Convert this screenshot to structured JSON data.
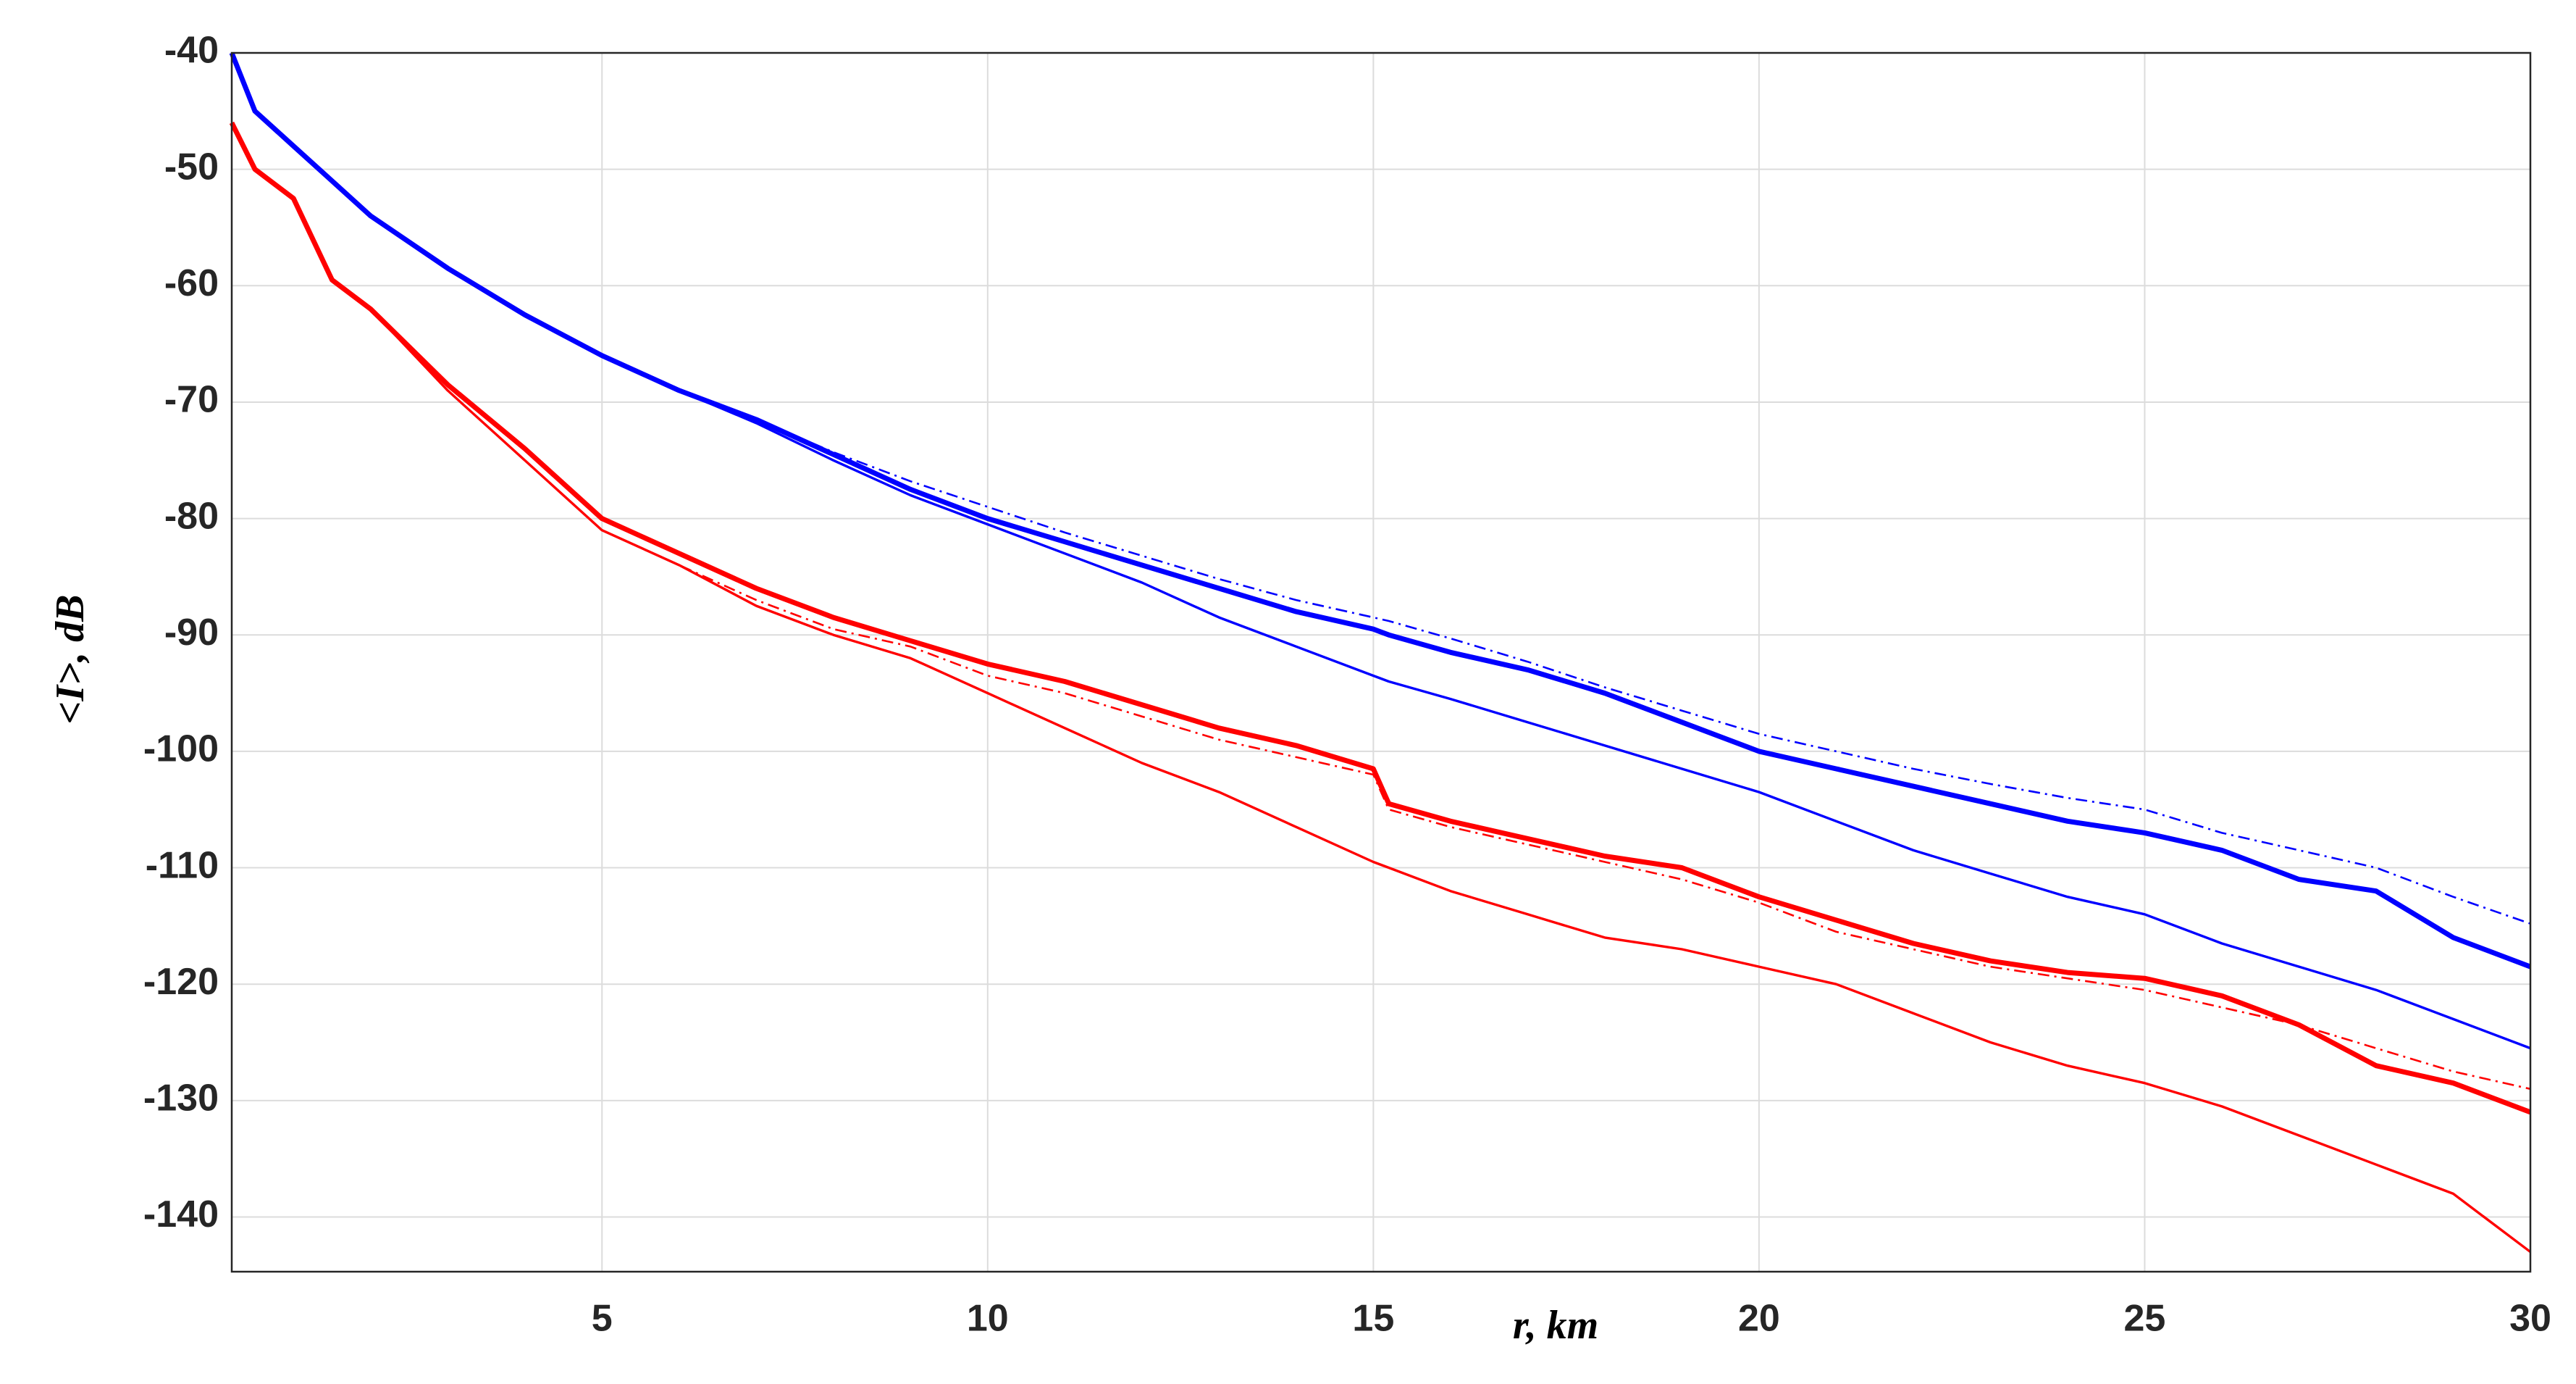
{
  "chart_data": {
    "type": "line",
    "xlabel": "r, km",
    "ylabel": "<I>, dB",
    "x": [
      0.2,
      0.5,
      1,
      1.5,
      2,
      3,
      4,
      5,
      6,
      7,
      8,
      9,
      10,
      11,
      12,
      13,
      14,
      15,
      15.2,
      16,
      17,
      18,
      19,
      20,
      21,
      22,
      23,
      24,
      25,
      26,
      27,
      28,
      29,
      30
    ],
    "series": [
      {
        "color": "#0000ff",
        "linestyle": "solid",
        "linewidth": "thick",
        "values": [
          -40,
          -45,
          -48,
          -51,
          -54,
          -58.5,
          -62.5,
          -66,
          -69,
          -71.5,
          -74.5,
          -77.5,
          -80,
          -82,
          -84,
          -86,
          -88,
          -89.5,
          -90,
          -91.5,
          -93,
          -95,
          -97.5,
          -100,
          -101.5,
          -103,
          -104.5,
          -106,
          -107,
          -108.5,
          -111,
          -112,
          -116,
          -118.5
        ]
      },
      {
        "color": "#0000ff",
        "linestyle": "dashdot",
        "linewidth": "thin",
        "values": [
          -40,
          -45,
          -48,
          -51,
          -54,
          -58.5,
          -62.5,
          -66,
          -69,
          -71.5,
          -74.3,
          -76.8,
          -79,
          -81.2,
          -83.2,
          -85.2,
          -87,
          -88.5,
          -88.8,
          -90.3,
          -92.3,
          -94.5,
          -96.5,
          -98.5,
          -100,
          -101.5,
          -102.8,
          -104,
          -105,
          -107,
          -108.5,
          -110,
          -112.5,
          -114.8
        ]
      },
      {
        "color": "#0000ff",
        "linestyle": "solid",
        "linewidth": "medium",
        "values": [
          -40,
          -45,
          -48,
          -51,
          -54,
          -58.5,
          -62.5,
          -66,
          -69,
          -71.8,
          -75,
          -78,
          -80.5,
          -83,
          -85.5,
          -88.5,
          -91,
          -93.5,
          -94,
          -95.5,
          -97.5,
          -99.5,
          -101.5,
          -103.5,
          -106,
          -108.5,
          -110.5,
          -112.5,
          -114,
          -116.5,
          -118.5,
          -120.5,
          -123,
          -125.5
        ]
      },
      {
        "color": "#ff0000",
        "linestyle": "solid",
        "linewidth": "thick",
        "values": [
          -46,
          -50,
          -52.5,
          -59.5,
          -62,
          -68.5,
          -74,
          -80,
          -83,
          -86,
          -88.5,
          -90.5,
          -92.5,
          -94,
          -96,
          -98,
          -99.5,
          -101.5,
          -104.5,
          -106,
          -107.5,
          -109,
          -110,
          -112.5,
          -114.5,
          -116.5,
          -118,
          -119,
          -119.5,
          -121,
          -123.5,
          -127,
          -128.5,
          -131
        ]
      },
      {
        "color": "#ff0000",
        "linestyle": "dashdot",
        "linewidth": "thin",
        "values": [
          -46,
          -50,
          -52.5,
          -59.5,
          -62,
          -69,
          -75,
          -81,
          -84,
          -87,
          -89.5,
          -91,
          -93.5,
          -95,
          -97,
          -99,
          -100.5,
          -102,
          -105,
          -106.5,
          -108,
          -109.5,
          -111,
          -113,
          -115.5,
          -117,
          -118.5,
          -119.5,
          -120.5,
          -122,
          -123.5,
          -125.5,
          -127.5,
          -129
        ]
      },
      {
        "color": "#ff0000",
        "linestyle": "solid",
        "linewidth": "medium",
        "values": [
          -46,
          -50,
          -52.5,
          -59.5,
          -62,
          -69,
          -75,
          -81,
          -84,
          -87.5,
          -90,
          -92,
          -95,
          -98,
          -101,
          -103.5,
          -106.5,
          -109.5,
          -110,
          -112,
          -114,
          -116,
          -117,
          -118.5,
          -120,
          -122.5,
          -125,
          -127,
          -128.5,
          -130.5,
          -133,
          -135.5,
          -138,
          -143
        ]
      }
    ],
    "xlim": [
      0.2,
      30
    ],
    "ylim": [
      -144.7,
      -40
    ],
    "xticks": [
      5,
      10,
      15,
      20,
      25,
      30
    ],
    "yticks": [
      -40,
      -50,
      -60,
      -70,
      -80,
      -90,
      -100,
      -110,
      -120,
      -130,
      -140
    ],
    "grid": true
  }
}
